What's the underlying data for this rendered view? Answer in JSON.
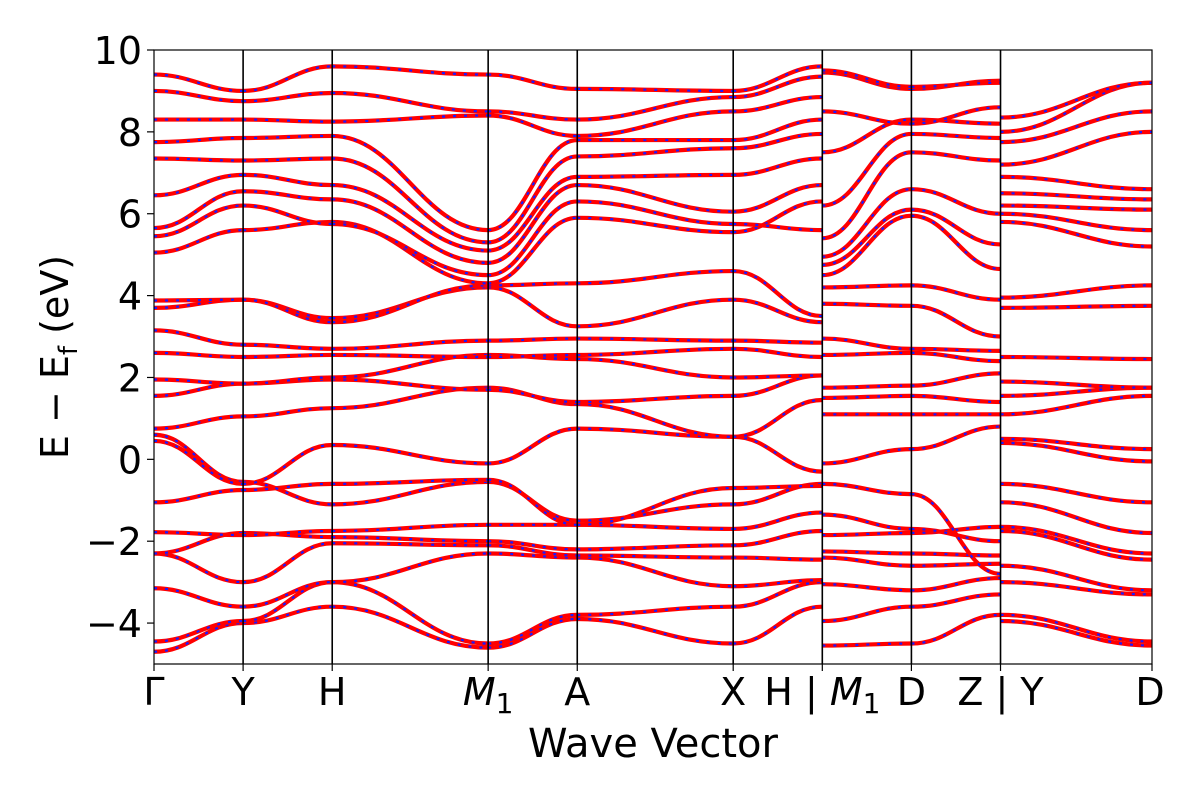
{
  "chart_data": {
    "type": "line",
    "title": "",
    "xlabel": "Wave Vector",
    "ylabel": "E − E_f (eV)",
    "ylabel_main": "E − E",
    "ylabel_sub": "f",
    "ylabel_unit": " (eV)",
    "ylim": [
      -5,
      10
    ],
    "yticks": [
      -4,
      -2,
      0,
      2,
      4,
      6,
      8,
      10
    ],
    "ytick_labels": [
      "−4",
      "−2",
      "0",
      "2",
      "4",
      "6",
      "8",
      "10"
    ],
    "xlim": [
      0,
      11.2
    ],
    "grid": false,
    "legend": "none",
    "kpoints": [
      {
        "x": 0.0,
        "label": "Γ"
      },
      {
        "x": 1.0,
        "label": "Y"
      },
      {
        "x": 2.0,
        "label": "H"
      },
      {
        "x": 3.75,
        "label": "M",
        "sub": "1"
      },
      {
        "x": 4.75,
        "label": "A"
      },
      {
        "x": 6.5,
        "label": "X"
      },
      {
        "x": 7.5,
        "label": "H | ",
        "join_label": "M",
        "join_sub": "1"
      },
      {
        "x": 8.5,
        "label": "D"
      },
      {
        "x": 9.5,
        "label": "Z | Y"
      },
      {
        "x": 11.2,
        "label": "D"
      }
    ],
    "segments": [
      {
        "from": "Γ",
        "to": "Y",
        "x0": 0.0,
        "x1": 1.0,
        "bands": [
          [
            -4.7,
            -4.0
          ],
          [
            -4.45,
            -3.95
          ],
          [
            -3.15,
            -3.6
          ],
          [
            -2.3,
            -3.0
          ],
          [
            -2.3,
            -1.8
          ],
          [
            -1.78,
            -1.85
          ],
          [
            -1.05,
            -0.75
          ],
          [
            0.6,
            -0.55
          ],
          [
            0.45,
            -0.6
          ],
          [
            0.75,
            1.05
          ],
          [
            1.55,
            1.85
          ],
          [
            1.95,
            1.85
          ],
          [
            2.6,
            2.5
          ],
          [
            3.15,
            2.8
          ],
          [
            3.7,
            3.9
          ],
          [
            3.88,
            3.9
          ],
          [
            5.05,
            5.6
          ],
          [
            5.45,
            6.2
          ],
          [
            5.65,
            6.55
          ],
          [
            6.45,
            6.95
          ],
          [
            7.35,
            7.3
          ],
          [
            7.75,
            7.85
          ],
          [
            8.3,
            8.3
          ],
          [
            9.0,
            8.75
          ],
          [
            9.4,
            9.0
          ]
        ]
      },
      {
        "from": "Y",
        "to": "H",
        "x0": 1.0,
        "x1": 2.0,
        "bands": [
          [
            -4.0,
            -3.6
          ],
          [
            -3.95,
            -3.0
          ],
          [
            -3.6,
            -3.0
          ],
          [
            -3.0,
            -2.05
          ],
          [
            -1.8,
            -1.9
          ],
          [
            -1.85,
            -1.75
          ],
          [
            -0.75,
            -0.6
          ],
          [
            -0.55,
            -1.1
          ],
          [
            -0.6,
            0.35
          ],
          [
            1.05,
            1.25
          ],
          [
            1.85,
            1.95
          ],
          [
            1.85,
            2.0
          ],
          [
            2.5,
            2.55
          ],
          [
            2.8,
            2.7
          ],
          [
            3.9,
            3.45
          ],
          [
            3.9,
            3.35
          ],
          [
            5.6,
            5.8
          ],
          [
            6.2,
            5.75
          ],
          [
            6.55,
            6.35
          ],
          [
            6.95,
            6.7
          ],
          [
            7.3,
            7.35
          ],
          [
            7.85,
            7.9
          ],
          [
            8.3,
            8.25
          ],
          [
            8.75,
            8.95
          ],
          [
            9.0,
            9.6
          ]
        ]
      },
      {
        "from": "H",
        "to": "M1",
        "x0": 2.0,
        "x1": 3.75,
        "bands": [
          [
            -3.6,
            -4.6
          ],
          [
            -3.0,
            -4.5
          ],
          [
            -3.0,
            -2.3
          ],
          [
            -2.05,
            -2.1
          ],
          [
            -1.9,
            -2.0
          ],
          [
            -1.75,
            -1.6
          ],
          [
            -1.1,
            -0.55
          ],
          [
            -0.6,
            -0.5
          ],
          [
            0.35,
            -0.1
          ],
          [
            1.25,
            1.75
          ],
          [
            1.95,
            1.7
          ],
          [
            2.0,
            2.55
          ],
          [
            2.55,
            2.5
          ],
          [
            2.7,
            2.9
          ],
          [
            3.45,
            4.2
          ],
          [
            3.35,
            4.25
          ],
          [
            5.8,
            4.3
          ],
          [
            5.75,
            4.5
          ],
          [
            6.35,
            4.8
          ],
          [
            6.7,
            5.1
          ],
          [
            7.35,
            5.3
          ],
          [
            7.9,
            5.6
          ],
          [
            8.25,
            8.4
          ],
          [
            8.95,
            8.5
          ],
          [
            9.6,
            9.4
          ]
        ]
      },
      {
        "from": "M1",
        "to": "A",
        "x0": 3.75,
        "x1": 4.75,
        "bands": [
          [
            -4.6,
            -3.9
          ],
          [
            -4.5,
            -3.8
          ],
          [
            -2.3,
            -2.4
          ],
          [
            -2.1,
            -2.35
          ],
          [
            -2.0,
            -2.2
          ],
          [
            -1.6,
            -1.6
          ],
          [
            -0.55,
            -1.5
          ],
          [
            -0.5,
            -1.6
          ],
          [
            -0.1,
            0.75
          ],
          [
            1.75,
            1.35
          ],
          [
            1.7,
            1.4
          ],
          [
            2.55,
            2.45
          ],
          [
            2.5,
            2.55
          ],
          [
            2.9,
            2.95
          ],
          [
            4.2,
            3.25
          ],
          [
            4.25,
            4.3
          ],
          [
            4.3,
            5.9
          ],
          [
            4.5,
            6.3
          ],
          [
            4.8,
            6.7
          ],
          [
            5.1,
            6.9
          ],
          [
            5.3,
            7.4
          ],
          [
            5.6,
            7.8
          ],
          [
            8.4,
            7.9
          ],
          [
            8.5,
            8.3
          ],
          [
            9.4,
            9.05
          ]
        ]
      },
      {
        "from": "A",
        "to": "X",
        "x0": 4.75,
        "x1": 6.5,
        "bands": [
          [
            -3.9,
            -4.5
          ],
          [
            -3.8,
            -3.6
          ],
          [
            -2.4,
            -3.1
          ],
          [
            -2.35,
            -2.4
          ],
          [
            -2.2,
            -2.1
          ],
          [
            -1.6,
            -1.7
          ],
          [
            -1.5,
            -1.1
          ],
          [
            -1.6,
            -0.7
          ],
          [
            0.75,
            0.55
          ],
          [
            1.35,
            0.55
          ],
          [
            1.4,
            1.55
          ],
          [
            2.45,
            2.0
          ],
          [
            2.55,
            2.7
          ],
          [
            2.95,
            2.9
          ],
          [
            3.25,
            3.9
          ],
          [
            4.3,
            4.6
          ],
          [
            5.9,
            5.55
          ],
          [
            6.3,
            5.75
          ],
          [
            6.7,
            6.05
          ],
          [
            6.9,
            6.95
          ],
          [
            7.4,
            7.6
          ],
          [
            7.8,
            7.8
          ],
          [
            7.9,
            8.5
          ],
          [
            8.3,
            8.85
          ],
          [
            9.05,
            9.0
          ]
        ]
      },
      {
        "from": "X",
        "to": "H",
        "x0": 6.5,
        "x1": 7.5,
        "bands": [
          [
            -4.5,
            -3.6
          ],
          [
            -3.6,
            -3.0
          ],
          [
            -3.1,
            -2.95
          ],
          [
            -2.4,
            -2.45
          ],
          [
            -2.1,
            -1.75
          ],
          [
            -1.7,
            -1.3
          ],
          [
            -1.1,
            -0.6
          ],
          [
            -0.7,
            -0.65
          ],
          [
            0.55,
            -0.3
          ],
          [
            0.55,
            1.45
          ],
          [
            1.55,
            2.05
          ],
          [
            2.0,
            2.05
          ],
          [
            2.7,
            2.5
          ],
          [
            2.9,
            2.85
          ],
          [
            3.9,
            3.35
          ],
          [
            4.6,
            3.5
          ],
          [
            5.55,
            6.3
          ],
          [
            5.75,
            5.6
          ],
          [
            6.05,
            6.7
          ],
          [
            6.95,
            7.35
          ],
          [
            7.6,
            7.95
          ],
          [
            7.8,
            8.3
          ],
          [
            8.5,
            8.85
          ],
          [
            8.85,
            9.35
          ],
          [
            9.0,
            9.6
          ]
        ]
      },
      {
        "from": "M1",
        "to": "D",
        "x0": 7.5,
        "x1": 8.5,
        "bands": [
          [
            -4.55,
            -4.5
          ],
          [
            -3.95,
            -3.6
          ],
          [
            -3.05,
            -3.2
          ],
          [
            -2.4,
            -2.6
          ],
          [
            -2.25,
            -2.3
          ],
          [
            -1.85,
            -1.8
          ],
          [
            -1.35,
            -1.7
          ],
          [
            -0.6,
            -0.85
          ],
          [
            -0.1,
            0.25
          ],
          [
            1.1,
            1.1
          ],
          [
            1.5,
            1.55
          ],
          [
            1.75,
            1.8
          ],
          [
            2.55,
            2.6
          ],
          [
            2.95,
            2.7
          ],
          [
            3.8,
            3.75
          ],
          [
            4.2,
            4.25
          ],
          [
            4.5,
            5.95
          ],
          [
            4.75,
            6.1
          ],
          [
            4.95,
            6.6
          ],
          [
            5.4,
            7.5
          ],
          [
            6.2,
            7.95
          ],
          [
            7.5,
            8.3
          ],
          [
            8.5,
            8.2
          ],
          [
            9.45,
            9.05
          ],
          [
            9.5,
            9.1
          ]
        ]
      },
      {
        "from": "D",
        "to": "Z",
        "x0": 8.5,
        "x1": 9.5,
        "bands": [
          [
            -4.5,
            -3.8
          ],
          [
            -3.6,
            -3.3
          ],
          [
            -3.2,
            -2.9
          ],
          [
            -2.6,
            -2.55
          ],
          [
            -2.3,
            -2.35
          ],
          [
            -1.8,
            -1.65
          ],
          [
            -1.7,
            -2.0
          ],
          [
            -0.85,
            -2.8
          ],
          [
            0.25,
            0.8
          ],
          [
            1.1,
            1.1
          ],
          [
            1.55,
            1.4
          ],
          [
            1.8,
            2.1
          ],
          [
            2.6,
            2.4
          ],
          [
            2.7,
            2.65
          ],
          [
            3.75,
            3.0
          ],
          [
            4.25,
            3.9
          ],
          [
            5.95,
            4.65
          ],
          [
            6.1,
            5.25
          ],
          [
            6.6,
            6.0
          ],
          [
            7.5,
            7.3
          ],
          [
            7.95,
            7.85
          ],
          [
            8.3,
            8.2
          ],
          [
            8.2,
            8.6
          ],
          [
            9.05,
            9.25
          ],
          [
            9.1,
            9.2
          ]
        ]
      },
      {
        "from": "Y",
        "to": "D",
        "x0": 9.5,
        "x1": 11.2,
        "bands": [
          [
            -3.95,
            -4.55
          ],
          [
            -3.8,
            -4.45
          ],
          [
            -3.0,
            -3.3
          ],
          [
            -2.6,
            -3.2
          ],
          [
            -1.75,
            -2.45
          ],
          [
            -1.65,
            -2.3
          ],
          [
            -1.05,
            -1.8
          ],
          [
            -0.6,
            -1.05
          ],
          [
            0.4,
            -0.05
          ],
          [
            0.5,
            0.25
          ],
          [
            1.1,
            1.55
          ],
          [
            1.55,
            1.75
          ],
          [
            1.9,
            1.75
          ],
          [
            2.5,
            2.45
          ],
          [
            3.7,
            3.75
          ],
          [
            3.95,
            4.25
          ],
          [
            5.8,
            5.2
          ],
          [
            6.0,
            5.6
          ],
          [
            6.2,
            6.1
          ],
          [
            6.5,
            6.35
          ],
          [
            6.9,
            6.6
          ],
          [
            7.2,
            8.0
          ],
          [
            7.75,
            8.5
          ],
          [
            8.0,
            9.2
          ],
          [
            8.35,
            9.2
          ]
        ]
      }
    ]
  }
}
